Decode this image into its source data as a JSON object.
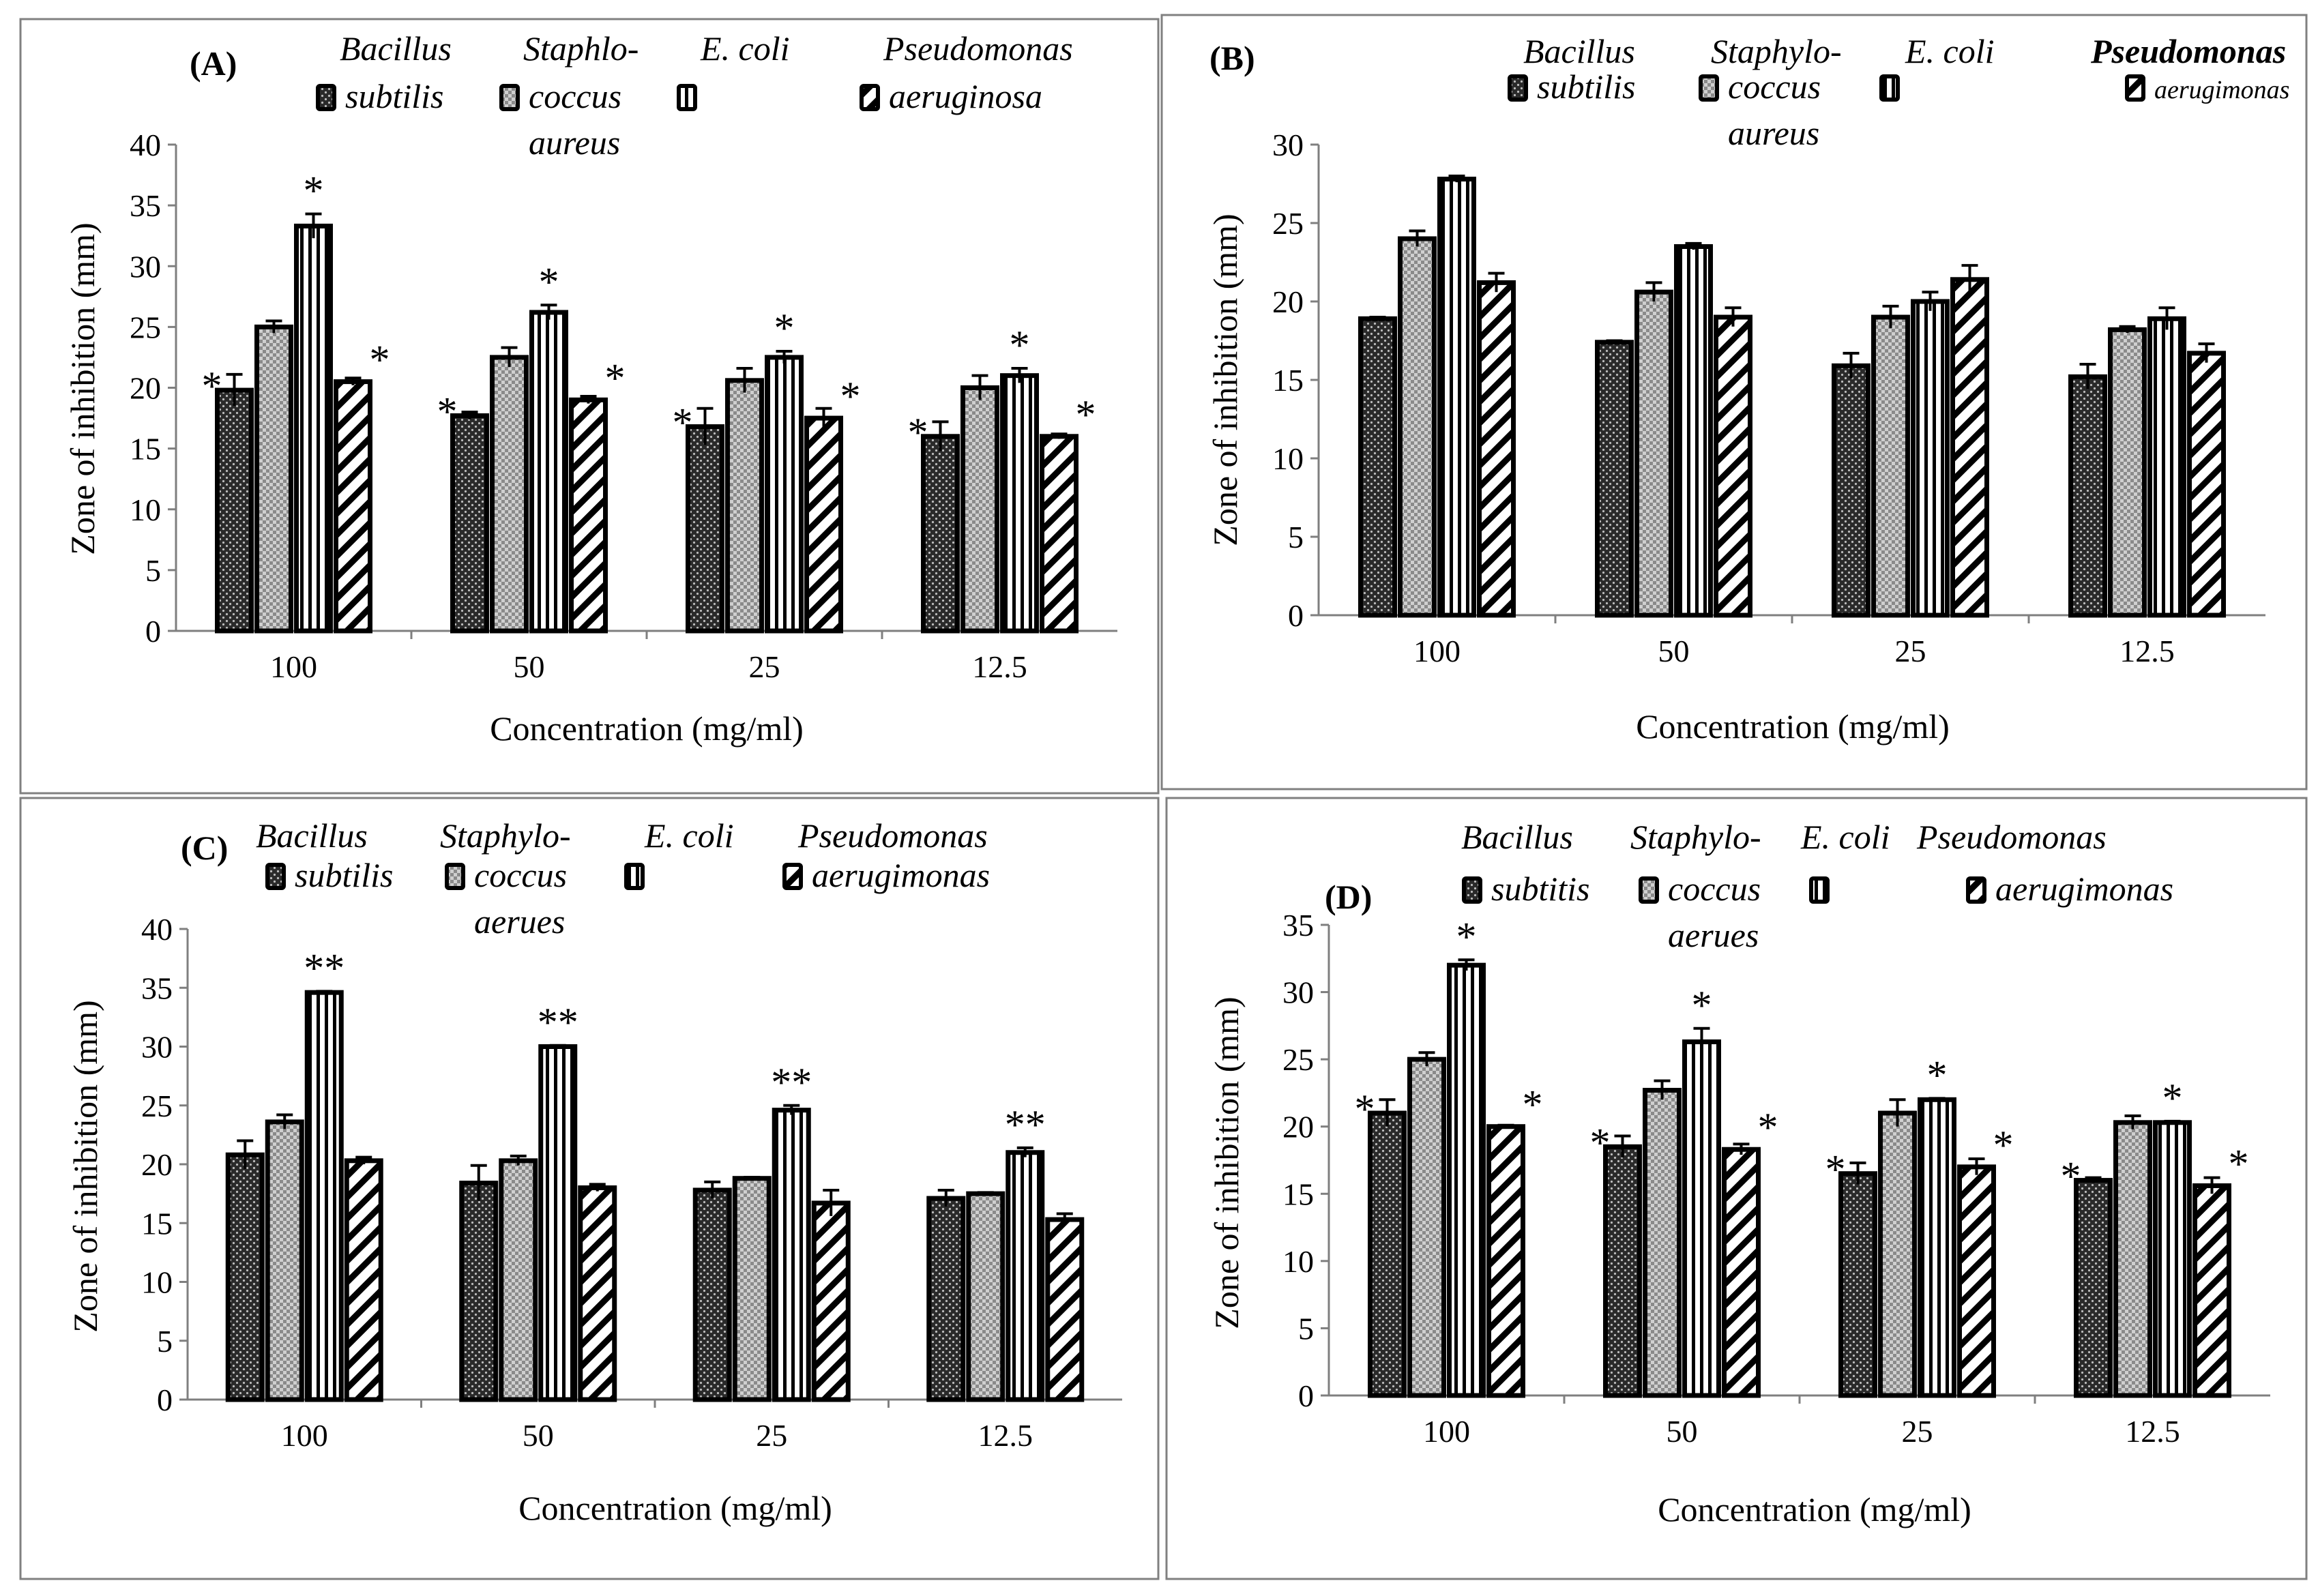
{
  "figure": {
    "xlabel": "Concentration  (mg/ml)",
    "ylabel": "Zone of inhibition  (mm)"
  },
  "chart_data": [
    {
      "panel": "(A)",
      "type": "bar",
      "categories": [
        "100",
        "50",
        "25",
        "12.5"
      ],
      "ylim": [
        0,
        40
      ],
      "yticks": [
        0,
        5,
        10,
        15,
        20,
        25,
        30,
        35,
        40
      ],
      "xlabel": "Concentration  (mg/ml)",
      "ylabel": "Zone of inhibition  (mm)",
      "legend": [
        {
          "name": "Bacillus subtilis",
          "lines": [
            "Bacillus",
            "subtilis"
          ]
        },
        {
          "name": "Staphlococcus aureus",
          "lines": [
            "Staphlo-",
            "coccus",
            "aureus"
          ]
        },
        {
          "name": "E. coli",
          "lines": [
            "E. coli"
          ]
        },
        {
          "name": "Pseudomonas aeruginosa",
          "lines": [
            "Pseudomonas",
            "aeruginosa"
          ]
        }
      ],
      "series": [
        {
          "name": "Bacillus subtilis",
          "pattern": "dots",
          "values": [
            19.8,
            17.7,
            16.8,
            16.0
          ],
          "errors": [
            1.3,
            0.3,
            1.5,
            1.2
          ],
          "sig": [
            "*",
            "*",
            "*",
            "*"
          ]
        },
        {
          "name": "Staphlococcus aureus",
          "pattern": "checker",
          "values": [
            25.0,
            22.5,
            20.6,
            20.0
          ],
          "errors": [
            0.5,
            0.8,
            1.0,
            1.0
          ],
          "sig": [
            "",
            "",
            "",
            ""
          ]
        },
        {
          "name": "E. coli",
          "pattern": "vlines",
          "values": [
            33.3,
            26.2,
            22.5,
            21.0
          ],
          "errors": [
            1.0,
            0.6,
            0.5,
            0.6
          ],
          "sig": [
            "*",
            "*",
            "*",
            "*"
          ]
        },
        {
          "name": "Pseudomonas aeruginosa",
          "pattern": "diag",
          "values": [
            20.5,
            19.0,
            17.5,
            16.0
          ],
          "errors": [
            0.3,
            0.3,
            0.8,
            0.2
          ],
          "sig": [
            "*",
            "*",
            "*",
            "*"
          ]
        }
      ]
    },
    {
      "panel": "(B)",
      "type": "bar",
      "categories": [
        "100",
        "50",
        "25",
        "12.5"
      ],
      "ylim": [
        0,
        30
      ],
      "yticks": [
        0,
        5,
        10,
        15,
        20,
        25,
        30
      ],
      "xlabel": "Concentration  (mg/ml)",
      "ylabel": "Zone of inhibition  (mm)",
      "legend": [
        {
          "name": "Bacillus subtilis",
          "lines": [
            "Bacillus",
            "subtilis"
          ]
        },
        {
          "name": "Staphylococcus aureus",
          "lines": [
            "Staphylo-",
            "coccus",
            "aureus"
          ]
        },
        {
          "name": "E. coli",
          "lines": [
            "E. coli"
          ]
        },
        {
          "name": "Pseudomonas aerugimonas",
          "lines": [
            "Pseudomonas",
            "aerugimonas"
          ],
          "bold": true
        }
      ],
      "series": [
        {
          "name": "Bacillus subtilis",
          "pattern": "dots",
          "values": [
            18.9,
            17.4,
            15.9,
            15.2
          ],
          "errors": [
            0.1,
            0.1,
            0.8,
            0.8
          ],
          "sig": [
            "",
            "",
            "",
            ""
          ]
        },
        {
          "name": "Staphylococcus aureus",
          "pattern": "checker",
          "values": [
            24.0,
            20.6,
            19.0,
            18.2
          ],
          "errors": [
            0.5,
            0.6,
            0.7,
            0.2
          ],
          "sig": [
            "",
            "",
            "",
            ""
          ]
        },
        {
          "name": "E. coli",
          "pattern": "vlines",
          "values": [
            27.8,
            23.5,
            20.0,
            18.9
          ],
          "errors": [
            0.2,
            0.2,
            0.6,
            0.7
          ],
          "sig": [
            "",
            "",
            "",
            ""
          ]
        },
        {
          "name": "Pseudomonas aerugimonas",
          "pattern": "diag",
          "values": [
            21.2,
            19.0,
            21.4,
            16.7
          ],
          "errors": [
            0.6,
            0.6,
            0.9,
            0.6
          ],
          "sig": [
            "",
            "",
            "",
            ""
          ]
        }
      ]
    },
    {
      "panel": "(C)",
      "type": "bar",
      "categories": [
        "100",
        "50",
        "25",
        "12.5"
      ],
      "ylim": [
        0,
        40
      ],
      "yticks": [
        0,
        5,
        10,
        15,
        20,
        25,
        30,
        35,
        40
      ],
      "xlabel": "Concentration  (mg/ml)",
      "ylabel": "Zone  of  inhibition  (mm)",
      "legend": [
        {
          "name": "Bacillus subtilis",
          "lines": [
            "Bacillus",
            "subtilis"
          ]
        },
        {
          "name": "Staphylococcus aerues",
          "lines": [
            "Staphylo-",
            "coccus",
            "aerues"
          ]
        },
        {
          "name": "E. coli",
          "lines": [
            "E. coli"
          ]
        },
        {
          "name": "Pseudomonas aerugimonas",
          "lines": [
            "Pseudomonas",
            "aerugimonas"
          ]
        }
      ],
      "series": [
        {
          "name": "Bacillus subtilis",
          "pattern": "dots",
          "values": [
            20.8,
            18.4,
            17.8,
            17.1
          ],
          "errors": [
            1.2,
            1.5,
            0.7,
            0.7
          ],
          "sig": [
            "",
            "",
            "",
            ""
          ]
        },
        {
          "name": "Staphylococcus aerues",
          "pattern": "checker",
          "values": [
            23.6,
            20.3,
            18.8,
            17.5
          ],
          "errors": [
            0.6,
            0.4,
            0.1,
            0.1
          ],
          "sig": [
            "",
            "",
            "",
            ""
          ]
        },
        {
          "name": "E. coli",
          "pattern": "vlines",
          "values": [
            34.6,
            30.0,
            24.6,
            21.0
          ],
          "errors": [
            0.1,
            0.1,
            0.4,
            0.4
          ],
          "sig": [
            "**",
            "**",
            "**",
            "**"
          ]
        },
        {
          "name": "Pseudomonas aerugimonas",
          "pattern": "diag",
          "values": [
            20.3,
            18.0,
            16.7,
            15.3
          ],
          "errors": [
            0.3,
            0.3,
            1.1,
            0.5
          ],
          "sig": [
            "",
            "",
            "",
            ""
          ]
        }
      ]
    },
    {
      "panel": "(D)",
      "type": "bar",
      "categories": [
        "100",
        "50",
        "25",
        "12.5"
      ],
      "ylim": [
        0,
        35
      ],
      "yticks": [
        0,
        5,
        10,
        15,
        20,
        25,
        30,
        35
      ],
      "xlabel": "Concentration  (mg/ml)",
      "ylabel": "Zone of inhibition  (mm)",
      "legend": [
        {
          "name": "Bacillus subtitis",
          "lines": [
            "Bacillus",
            "subtitis"
          ]
        },
        {
          "name": "Staphylococcus aerues",
          "lines": [
            "Staphylo-",
            "coccus",
            "aerues"
          ]
        },
        {
          "name": "E. coli",
          "lines": [
            "E. coli"
          ]
        },
        {
          "name": "Pseudomonas aerugimonas",
          "lines": [
            "Pseudomonas",
            "aerugimonas"
          ]
        }
      ],
      "series": [
        {
          "name": "Bacillus subtitis",
          "pattern": "dots",
          "values": [
            21.0,
            18.5,
            16.5,
            16.0
          ],
          "errors": [
            1.0,
            0.8,
            0.8,
            0.2
          ],
          "sig": [
            "*",
            "*",
            "*",
            "*"
          ]
        },
        {
          "name": "Staphylococcus aerues",
          "pattern": "checker",
          "values": [
            25.0,
            22.7,
            21.0,
            20.3
          ],
          "errors": [
            0.5,
            0.7,
            1.0,
            0.5
          ],
          "sig": [
            "",
            "",
            "",
            ""
          ]
        },
        {
          "name": "E. coli",
          "pattern": "vlines",
          "values": [
            32.0,
            26.3,
            22.0,
            20.3
          ],
          "errors": [
            0.4,
            1.0,
            0.1,
            0.1
          ],
          "sig": [
            "*",
            "*",
            "*",
            "*"
          ]
        },
        {
          "name": "Pseudomonas aerugimonas",
          "pattern": "diag",
          "values": [
            20.0,
            18.3,
            17.0,
            15.6
          ],
          "errors": [
            0.1,
            0.4,
            0.6,
            0.6
          ],
          "sig": [
            "*",
            "*",
            "*",
            "*"
          ]
        }
      ]
    }
  ]
}
